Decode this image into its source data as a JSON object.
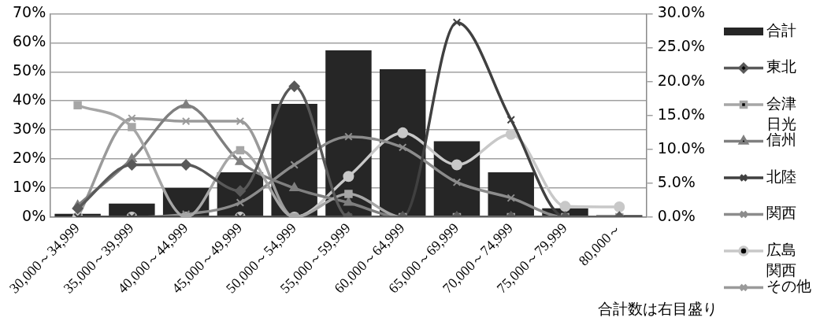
{
  "chart_data": {
    "type": "bar",
    "categories": [
      "30,000～34,999",
      "35,000～39,999",
      "40,000～44,999",
      "45,000～49,999",
      "50,000～54,999",
      "55,000～59,999",
      "60,000～64,999",
      "65,000～69,999",
      "70,000～74,999",
      "75,000～79,999",
      "80,000～"
    ],
    "series": [
      {
        "name": "合計",
        "axis": "y2",
        "color": "#262626",
        "values": [
          0.5,
          2.0,
          4.3,
          6.6,
          16.7,
          24.6,
          21.8,
          11.2,
          6.6,
          1.3,
          0.3
        ]
      },
      {
        "name": "東北",
        "type": "line",
        "marker": "diamond",
        "color": "#595959",
        "values": [
          3,
          18,
          18,
          9,
          45,
          0,
          0,
          0,
          0,
          0,
          0
        ]
      },
      {
        "name": "会津",
        "type": "line",
        "marker": "square",
        "color": "#a6a6a6",
        "values": [
          38.5,
          31,
          0,
          23,
          0,
          8,
          0,
          0,
          0,
          0,
          0
        ]
      },
      {
        "name": "日光信州",
        "type": "line",
        "marker": "triangle",
        "color": "#7f7f7f",
        "values": [
          4,
          20,
          38.5,
          19,
          10,
          5,
          0,
          0,
          0,
          0,
          0
        ]
      },
      {
        "name": "北陸",
        "type": "line",
        "marker": "cross",
        "color": "#404040",
        "values": [
          0,
          0,
          0,
          0,
          0,
          0,
          0,
          67,
          33.5,
          0,
          0
        ]
      },
      {
        "name": "関西",
        "type": "line",
        "marker": "cross",
        "color": "#8c8c8c",
        "values": [
          0,
          0,
          1,
          5,
          18,
          27.7,
          24,
          12,
          6.6,
          0,
          0
        ]
      },
      {
        "name": "広島",
        "type": "line",
        "marker": "circle",
        "color": "#c8c8c8",
        "values": [
          0,
          0,
          0,
          0,
          0,
          14,
          29,
          18,
          28.5,
          3.7,
          3.5
        ]
      },
      {
        "name": "関西その他",
        "type": "line",
        "marker": "cross",
        "color": "#9a9a9a",
        "values": [
          0,
          34,
          33,
          33,
          0,
          0,
          0,
          0,
          0,
          0,
          0
        ]
      }
    ],
    "ylim": [
      0,
      70
    ],
    "yticks": [
      {
        "value": 0,
        "label": "0%"
      },
      {
        "value": 10,
        "label": "10%"
      },
      {
        "value": 20,
        "label": "20%"
      },
      {
        "value": 30,
        "label": "30%"
      },
      {
        "value": 40,
        "label": "40%"
      },
      {
        "value": 50,
        "label": "50%"
      },
      {
        "value": 60,
        "label": "60%"
      },
      {
        "value": 70,
        "label": "70%"
      }
    ],
    "y2lim": [
      0,
      30
    ],
    "y2ticks": [
      {
        "value": 0,
        "label": "0.0%"
      },
      {
        "value": 5,
        "label": "5.0%"
      },
      {
        "value": 10,
        "label": "10.0%"
      },
      {
        "value": 15,
        "label": "15.0%"
      },
      {
        "value": 20,
        "label": "20.0%"
      },
      {
        "value": 25,
        "label": "25.0%"
      },
      {
        "value": 30,
        "label": "30.0%"
      }
    ],
    "grid": "y",
    "legend": "right",
    "annotations": [
      "合計数は右目盛り"
    ]
  }
}
